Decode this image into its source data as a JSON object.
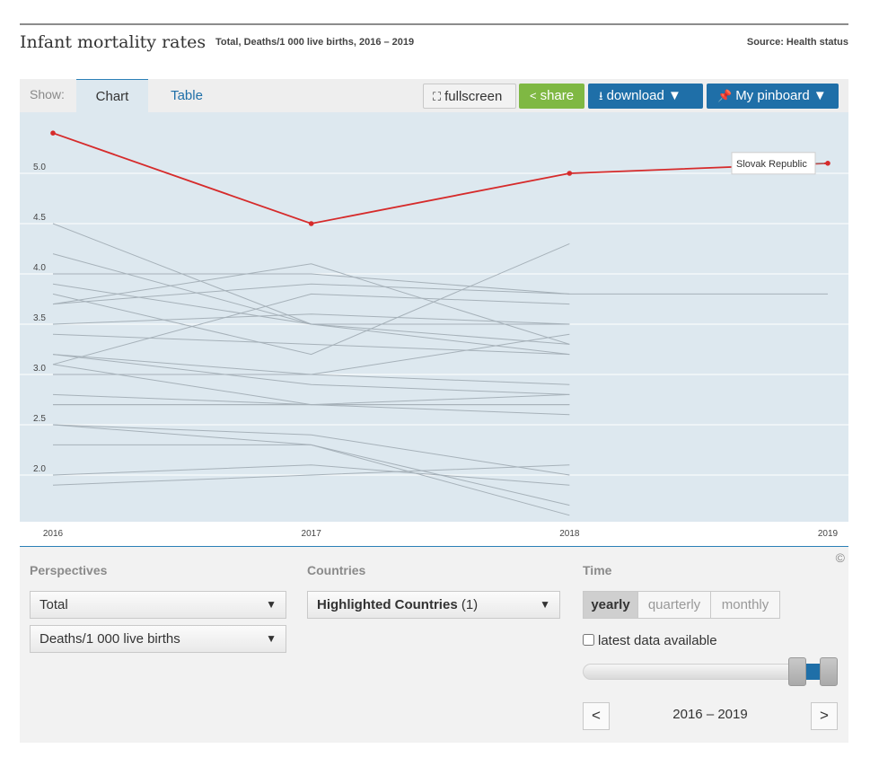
{
  "header": {
    "title": "Infant mortality rates",
    "subtitle": "Total, Deaths/1 000 live births, 2016 – 2019",
    "source": "Source: Health status"
  },
  "toolbar": {
    "show_label": "Show:",
    "tabs": [
      {
        "label": "Chart",
        "active": true
      },
      {
        "label": "Table",
        "active": false
      }
    ],
    "buttons": {
      "fullscreen": "fullscreen",
      "share": "share",
      "download": "download ▼",
      "pinboard": "My pinboard ▼"
    }
  },
  "colors": {
    "highlight": "#d62b2b",
    "background_series": "#a6b1b9",
    "plot_bg": "#dde8ef",
    "share_green": "#7fb843",
    "button_blue": "#1f6fa8"
  },
  "chart_data": {
    "type": "line",
    "x": [
      "2016",
      "2017",
      "2018",
      "2019"
    ],
    "ylim": [
      1.55,
      5.6
    ],
    "yticks": [
      "2.0",
      "2.5",
      "3.0",
      "3.5",
      "4.0",
      "4.5",
      "5.0"
    ],
    "grid": true,
    "highlighted_series": {
      "name": "Slovak Republic",
      "values": [
        5.4,
        4.5,
        5.0,
        5.1
      ]
    },
    "background_series": [
      [
        4.5,
        3.5,
        3.2
      ],
      [
        4.2,
        3.5,
        3.5
      ],
      [
        3.9,
        3.5,
        3.3
      ],
      [
        3.8,
        3.2,
        4.3
      ],
      [
        3.7,
        3.9,
        3.8,
        3.8
      ],
      [
        3.7,
        4.1,
        3.3
      ],
      [
        3.5,
        3.6,
        3.5
      ],
      [
        3.4,
        3.3,
        3.2
      ],
      [
        3.2,
        3.0,
        3.4
      ],
      [
        3.2,
        2.9,
        2.8
      ],
      [
        3.1,
        3.8,
        3.7
      ],
      [
        3.1,
        2.7,
        2.7
      ],
      [
        3.0,
        3.0,
        2.9
      ],
      [
        2.8,
        2.7,
        2.7
      ],
      [
        2.7,
        2.7,
        2.6
      ],
      [
        2.7,
        2.7,
        2.8
      ],
      [
        2.5,
        2.4,
        2.0
      ],
      [
        2.5,
        2.3,
        1.7
      ],
      [
        2.3,
        2.3,
        1.6
      ],
      [
        2.0,
        2.1,
        1.9
      ],
      [
        1.9,
        2.0,
        2.1
      ],
      [
        4.0,
        4.0,
        3.8
      ]
    ]
  },
  "controls": {
    "perspectives": {
      "title": "Perspectives",
      "select1": "Total",
      "select2": "Deaths/1 000 live births"
    },
    "countries": {
      "title": "Countries",
      "select_label": "Highlighted Countries",
      "select_count": "(1)"
    },
    "time": {
      "title": "Time",
      "yearly": "yearly",
      "quarterly": "quarterly",
      "monthly": "monthly",
      "latest_label": "latest data available",
      "range": "2016 – 2019",
      "prev": "<",
      "next": ">"
    },
    "copyright": "©"
  }
}
